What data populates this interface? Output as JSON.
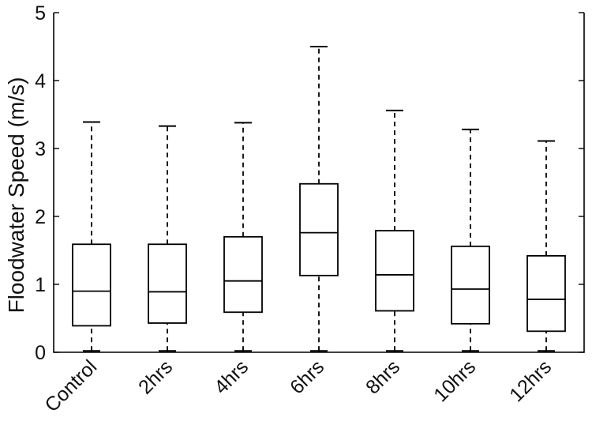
{
  "chart_data": {
    "type": "boxplot",
    "title": "",
    "xlabel": "",
    "ylabel": "Floodwater Speed (m/s)",
    "ylim": [
      0,
      5
    ],
    "yticks": [
      0,
      1,
      2,
      3,
      4,
      5
    ],
    "grid": false,
    "categories": [
      "Control",
      "2hrs",
      "4hrs",
      "6hrs",
      "8hrs",
      "10hrs",
      "12hrs"
    ],
    "boxes": [
      {
        "min": 0.02,
        "q1": 0.39,
        "median": 0.9,
        "q3": 1.59,
        "max": 3.39
      },
      {
        "min": 0.02,
        "q1": 0.43,
        "median": 0.89,
        "q3": 1.59,
        "max": 3.33
      },
      {
        "min": 0.02,
        "q1": 0.59,
        "median": 1.05,
        "q3": 1.7,
        "max": 3.38
      },
      {
        "min": 0.02,
        "q1": 1.13,
        "median": 1.76,
        "q3": 2.48,
        "max": 4.5
      },
      {
        "min": 0.02,
        "q1": 0.61,
        "median": 1.14,
        "q3": 1.79,
        "max": 3.56
      },
      {
        "min": 0.02,
        "q1": 0.42,
        "median": 0.93,
        "q3": 1.56,
        "max": 3.28
      },
      {
        "min": 0.02,
        "q1": 0.31,
        "median": 0.78,
        "q3": 1.42,
        "max": 3.11
      }
    ]
  }
}
